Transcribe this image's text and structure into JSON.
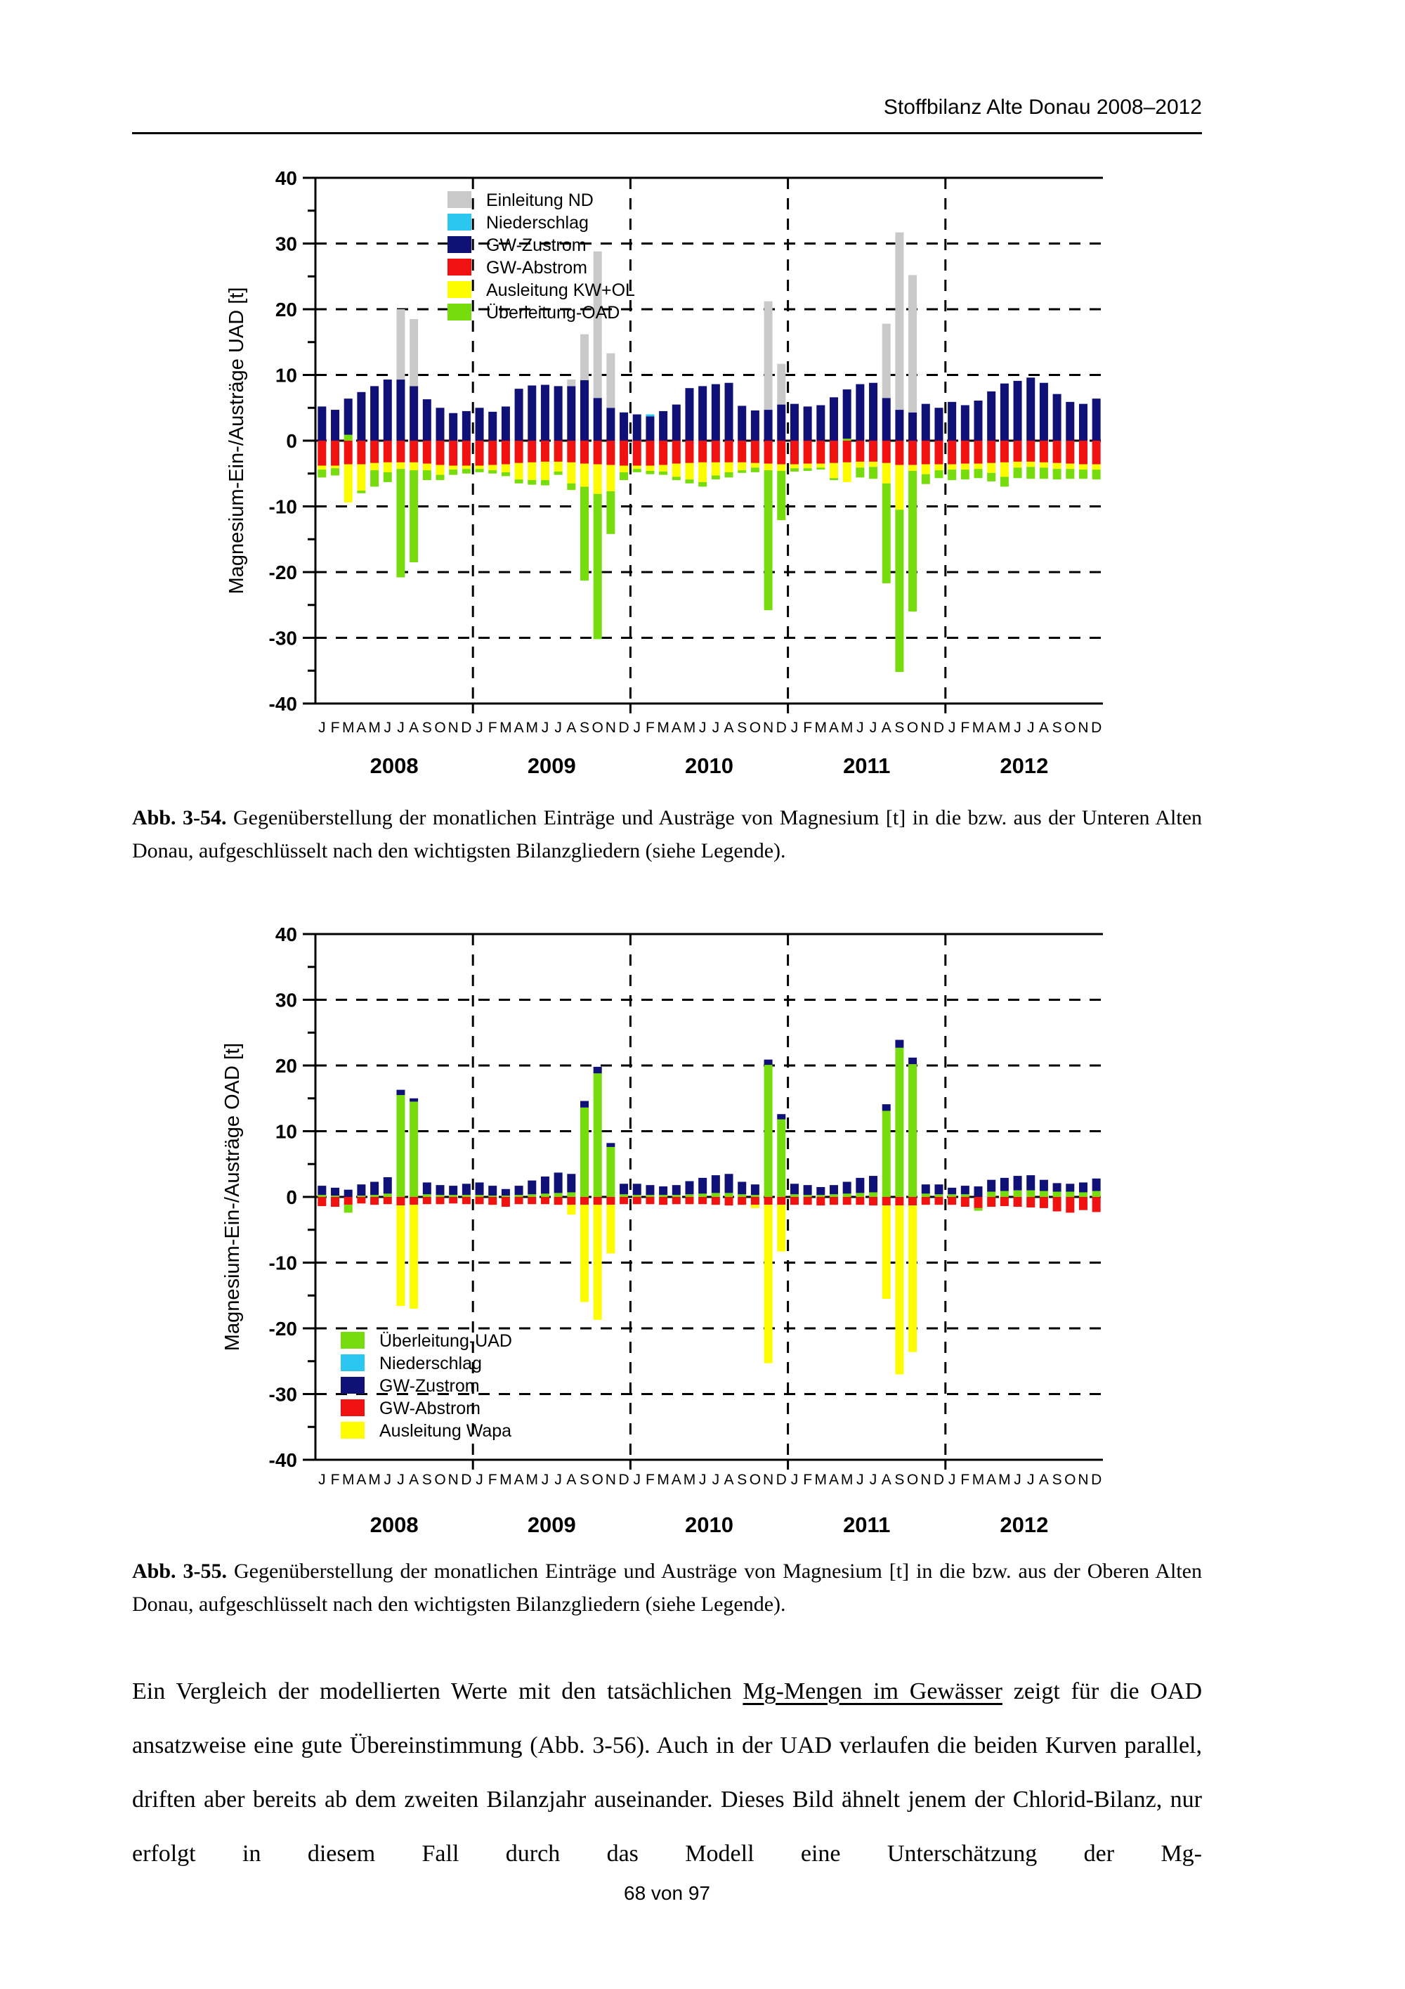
{
  "header": {
    "title": "Stoffbilanz Alte Donau 2008–2012"
  },
  "footer": {
    "text": "68 von 97"
  },
  "captions": [
    {
      "label": "Abb. 3-54.",
      "text": "Gegenüberstellung der monatlichen Einträge und Austräge von Magnesium [t] in die bzw. aus der Unteren Alten Donau, aufgeschlüsselt nach den wichtigsten Bilanzgliedern (siehe Legende)."
    },
    {
      "label": "Abb. 3-55.",
      "text": "Gegenüberstellung der monatlichen Einträge und Austräge von Magnesium [t] in die bzw. aus der Oberen Alten Donau, aufgeschlüsselt nach den wichtigsten Bilanzgliedern (siehe Legende)."
    }
  ],
  "paragraph": {
    "seg1": "Ein Vergleich der modellierten Werte mit den tatsächlichen ",
    "underlined": "Mg-Mengen im Gewässer",
    "seg2": " zeigt für die OAD ansatzweise eine gute Übereinstimmung (Abb. 3-56). Auch in der UAD verlaufen die beiden Kurven parallel, driften aber bereits ab dem zweiten Bilanzjahr auseinander. Dieses Bild ähnelt jenem der Chlorid-Bilanz, nur erfolgt in diesem Fall durch das Modell eine Unterschätzung der Mg-"
  },
  "chart_data": [
    {
      "type": "bar",
      "stacked": true,
      "ylabel": "Magnesium-Ein-/Austräge UAD [t]",
      "ylim": [
        -40,
        40
      ],
      "ytick_major": 10,
      "ytick_minor": 5,
      "grid": "dashed horizontal every 10, dashed vertical at year boundaries",
      "legend_position": "top-left",
      "month_letters": [
        "J",
        "F",
        "M",
        "A",
        "M",
        "J",
        "J",
        "A",
        "S",
        "O",
        "N",
        "D"
      ],
      "years": [
        "2008",
        "2009",
        "2010",
        "2011",
        "2012"
      ],
      "pos_stack_order": [
        "Überleitung-OAD",
        "GW-Zustrom",
        "Niederschlag",
        "Einleitung ND"
      ],
      "neg_stack_order": [
        "GW-Abstrom",
        "Ausleitung KW+OL",
        "Überleitung-OAD"
      ],
      "series": [
        {
          "name": "Einleitung ND",
          "color": "#c9c9c9",
          "values": [
            0,
            0,
            0,
            0,
            0,
            0,
            10.7,
            10.2,
            0,
            0,
            0,
            0,
            0,
            0,
            0,
            0,
            0,
            0,
            0,
            1,
            7,
            22.3,
            8.3,
            0,
            0,
            0,
            0,
            0,
            0,
            0,
            0,
            0,
            0,
            0,
            16.5,
            6.2,
            0,
            0,
            0,
            0,
            0,
            0,
            0,
            11.3,
            27,
            20.9,
            0,
            0,
            0,
            0,
            0,
            0,
            0,
            0,
            0,
            0,
            0,
            0,
            0,
            0
          ]
        },
        {
          "name": "Niederschlag",
          "color": "#2cc7f0",
          "values": [
            0,
            0,
            0,
            0,
            0,
            0,
            0,
            0,
            0,
            0,
            0,
            0,
            0,
            0,
            0,
            0,
            0,
            0,
            0,
            0,
            0,
            0,
            0,
            0,
            0,
            0.3,
            0,
            0,
            0,
            0,
            0,
            0,
            0,
            0,
            0,
            0,
            0,
            0,
            0,
            0,
            0,
            0,
            0,
            0,
            0,
            0,
            0,
            0,
            0,
            0,
            0,
            0,
            0,
            0,
            0,
            0,
            0,
            0,
            0,
            0
          ]
        },
        {
          "name": "GW-Zustrom",
          "color": "#0f1177",
          "values": [
            5.2,
            4.7,
            5.5,
            7.4,
            8.3,
            9.3,
            9.3,
            8.3,
            6.3,
            5,
            4.2,
            4.5,
            5,
            4.4,
            5.2,
            7.9,
            8.4,
            8.5,
            8.3,
            8.3,
            9.2,
            6.5,
            5,
            4.3,
            4,
            3.7,
            4.5,
            5.5,
            8,
            8.3,
            8.6,
            8.8,
            5.3,
            4.6,
            4.7,
            5.5,
            5.6,
            5.2,
            5.4,
            6.6,
            7.5,
            8.6,
            8.8,
            6.5,
            4.7,
            4.3,
            5.6,
            5,
            5.9,
            5.4,
            6.1,
            7.5,
            8.7,
            9.1,
            9.6,
            8.8,
            7.1,
            5.9,
            5.6,
            6.4
          ]
        },
        {
          "name": "GW-Abstrom",
          "color": "#f01111",
          "values": [
            -3.8,
            -3.8,
            -3.6,
            -3.6,
            -3.4,
            -3.3,
            -3.3,
            -3.3,
            -3.5,
            -3.7,
            -3.8,
            -3.8,
            -3.8,
            -3.7,
            -3.6,
            -3.4,
            -3.3,
            -3.2,
            -3.2,
            -3.3,
            -3.5,
            -3.6,
            -3.7,
            -3.8,
            -3.8,
            -3.8,
            -3.7,
            -3.5,
            -3.4,
            -3.3,
            -3.3,
            -3.3,
            -3.3,
            -3.4,
            -3.5,
            -3.6,
            -3.6,
            -3.5,
            -3.5,
            -3.4,
            -3.3,
            -3.2,
            -3.2,
            -3.4,
            -3.7,
            -3.7,
            -3.6,
            -3.6,
            -3.6,
            -3.5,
            -3.5,
            -3.4,
            -3.3,
            -3.2,
            -3.2,
            -3.3,
            -3.4,
            -3.5,
            -3.6,
            -3.6
          ]
        },
        {
          "name": "Ausleitung KW+OL",
          "color": "#fdfd00",
          "values": [
            -0.6,
            -0.4,
            -5.8,
            -4,
            -1.1,
            -1.5,
            -1,
            -1.2,
            -1,
            -1.5,
            -0.6,
            -0.5,
            -0.5,
            -0.8,
            -1.2,
            -2.5,
            -2.7,
            -2.8,
            -1.5,
            -3.2,
            -3.5,
            -4.5,
            -4,
            -1,
            -0.5,
            -0.8,
            -1,
            -2,
            -2.5,
            -3,
            -2,
            -1.5,
            -1.2,
            -0.7,
            -1,
            -1,
            -0.6,
            -0.7,
            -0.6,
            -2.3,
            -3,
            -0.9,
            -0.8,
            -3.1,
            -6.8,
            -0.9,
            -1.5,
            -0.9,
            -0.8,
            -0.9,
            -0.8,
            -1.5,
            -2.2,
            -0.9,
            -0.8,
            -0.8,
            -0.9,
            -0.8,
            -0.8,
            -0.8
          ]
        },
        {
          "name": "Überleitung-OAD",
          "color": "#76dc0e",
          "values": [
            -1.2,
            -1.1,
            0.9,
            -0.4,
            -2.5,
            -1.5,
            -16.5,
            -14,
            -1.5,
            -0.8,
            -0.8,
            -0.7,
            -0.5,
            -0.5,
            -0.6,
            -0.6,
            -0.7,
            -0.8,
            -0.5,
            -1,
            -14.3,
            -22.1,
            -6.5,
            -1.2,
            -0.5,
            -0.5,
            -0.5,
            -0.5,
            -0.6,
            -0.7,
            -0.6,
            -0.8,
            -0.4,
            -0.7,
            -21.3,
            -7.5,
            -0.5,
            -0.4,
            -0.3,
            -0.3,
            0.3,
            -1.5,
            -1.8,
            -15.2,
            -24.7,
            -21.4,
            -1.5,
            -1.2,
            -1.6,
            -1.5,
            -1.4,
            -1.3,
            -1.5,
            -1.6,
            -1.8,
            -1.7,
            -1.6,
            -1.5,
            -1.4,
            -1.5
          ]
        }
      ]
    },
    {
      "type": "bar",
      "stacked": true,
      "ylabel": "Magnesium-Ein-/Austräge OAD [t]",
      "ylim": [
        -40,
        40
      ],
      "ytick_major": 10,
      "ytick_minor": 5,
      "grid": "dashed horizontal every 10, dashed vertical at year boundaries",
      "legend_position": "bottom-left",
      "month_letters": [
        "J",
        "F",
        "M",
        "A",
        "M",
        "J",
        "J",
        "A",
        "S",
        "O",
        "N",
        "D"
      ],
      "years": [
        "2008",
        "2009",
        "2010",
        "2011",
        "2012"
      ],
      "pos_stack_order": [
        "Überleitung-UAD",
        "Niederschlag",
        "GW-Zustrom"
      ],
      "neg_stack_order": [
        "GW-Abstrom",
        "Ausleitung Wapa",
        "Überleitung-UAD"
      ],
      "series": [
        {
          "name": "Überleitung-UAD",
          "color": "#76dc0e",
          "values": [
            0.3,
            0.2,
            -1.2,
            0.2,
            0.3,
            0.5,
            15.5,
            14.5,
            0.4,
            0.3,
            0.3,
            0.3,
            0.3,
            0.2,
            0.2,
            0.3,
            0.4,
            0.5,
            0.6,
            0.7,
            13.6,
            18.8,
            7.6,
            0.4,
            0.3,
            0.3,
            0.3,
            0.3,
            0.4,
            0.5,
            0.6,
            0.6,
            0.4,
            0.3,
            20.1,
            11.8,
            0.4,
            0.3,
            0.3,
            0.4,
            0.5,
            0.6,
            0.7,
            13.1,
            22.7,
            20.2,
            0.5,
            0.4,
            0.4,
            0.4,
            -0.4,
            0.8,
            0.9,
            1,
            1,
            0.9,
            0.8,
            0.8,
            0.7,
            0.9
          ]
        },
        {
          "name": "Niederschlag",
          "color": "#2cc7f0",
          "values": [
            0,
            0,
            0,
            0,
            0,
            0,
            0,
            0,
            0,
            0,
            0,
            0,
            0,
            0,
            0,
            0,
            0,
            0,
            0,
            0,
            0,
            0,
            0,
            0,
            0,
            0,
            0,
            0,
            0,
            0,
            0,
            0,
            0,
            0,
            0,
            0,
            0,
            0,
            0,
            0,
            0,
            0,
            0,
            0,
            0,
            0,
            0,
            0,
            0,
            0,
            0,
            0,
            0,
            0,
            0,
            0,
            0,
            0,
            0,
            0
          ]
        },
        {
          "name": "GW-Zustrom",
          "color": "#0f1177",
          "values": [
            1.4,
            1.2,
            1.1,
            1.7,
            2,
            2.5,
            0.8,
            0.5,
            1.8,
            1.5,
            1.4,
            1.7,
            1.9,
            1.5,
            1,
            1.4,
            2.1,
            2.6,
            3.1,
            2.8,
            1,
            1,
            0.6,
            1.6,
            1.7,
            1.5,
            1.3,
            1.5,
            2,
            2.4,
            2.7,
            2.9,
            1.9,
            1.6,
            0.8,
            0.8,
            1.6,
            1.5,
            1.2,
            1.4,
            1.8,
            2.3,
            2.5,
            1,
            1.2,
            1,
            1.4,
            1.5,
            1,
            1.3,
            1.6,
            1.8,
            2,
            2.2,
            2.3,
            1.7,
            1.3,
            1.2,
            1.5,
            1.9
          ]
        },
        {
          "name": "GW-Abstrom",
          "color": "#f01111",
          "values": [
            -1.4,
            -1.5,
            -1.2,
            -1,
            -1.2,
            -1.1,
            -1.3,
            -1.2,
            -1.1,
            -1.1,
            -1,
            -1.1,
            -1.1,
            -1.2,
            -1.5,
            -1.1,
            -1.1,
            -1.1,
            -1.2,
            -1.2,
            -1.2,
            -1.2,
            -1.2,
            -1.1,
            -1.1,
            -1.1,
            -1.2,
            -1.1,
            -1.1,
            -1.1,
            -1.2,
            -1.3,
            -1.2,
            -1.2,
            -1.2,
            -1.2,
            -1.2,
            -1.2,
            -1.3,
            -1.2,
            -1.2,
            -1.2,
            -1.3,
            -1.3,
            -1.3,
            -1.3,
            -1.2,
            -1.2,
            -1.2,
            -1.5,
            -1.7,
            -1.5,
            -1.4,
            -1.5,
            -1.6,
            -1.7,
            -2.2,
            -2.4,
            -2,
            -2.3
          ]
        },
        {
          "name": "Ausleitung Wapa",
          "color": "#fdfd00",
          "values": [
            0,
            0,
            0,
            0,
            0,
            0,
            -15.3,
            -15.8,
            0,
            0,
            0,
            0,
            0,
            0,
            0,
            0,
            0,
            0,
            0,
            -1.5,
            -14.8,
            -17.5,
            -7.4,
            0,
            0,
            0,
            0,
            0,
            0,
            0,
            0,
            0,
            0,
            -0.5,
            -24.1,
            -7.1,
            0,
            0,
            0,
            0,
            0,
            0,
            0,
            -14.2,
            -25.7,
            -22.3,
            0,
            0,
            0,
            0,
            0,
            0,
            0,
            0,
            0,
            0,
            0,
            0,
            0,
            0
          ]
        }
      ]
    }
  ]
}
